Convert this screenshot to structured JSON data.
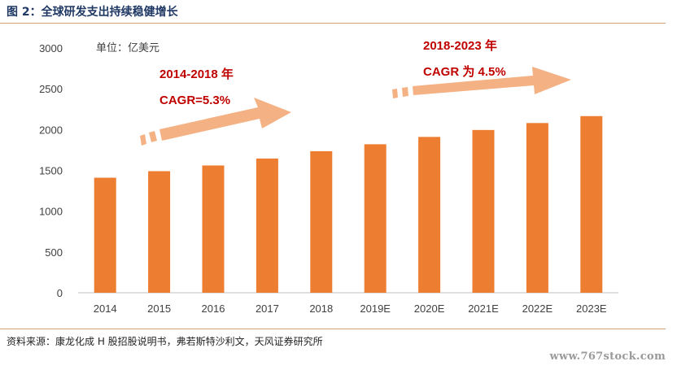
{
  "figure": {
    "title": "图 2：全球研发支出持续稳健增长",
    "source": "资料来源：康龙化成 H 股招股说明书，弗若斯特沙利文，天风证券研究所",
    "watermark": "www.767stock.com"
  },
  "colors": {
    "bar": "#ED7D31",
    "arrow": "#F4B183",
    "annotation": "#C00000",
    "axis_text": "#404040",
    "title": "#1F3864"
  },
  "chart_data": {
    "type": "bar",
    "unit_label": "单位：亿美元",
    "categories": [
      "2014",
      "2015",
      "2016",
      "2017",
      "2018",
      "2019E",
      "2020E",
      "2021E",
      "2022E",
      "2023E"
    ],
    "values": [
      1410,
      1490,
      1560,
      1645,
      1735,
      1820,
      1910,
      1995,
      2080,
      2165
    ],
    "ylim": [
      0,
      3000
    ],
    "yticks": [
      0,
      500,
      1000,
      1500,
      2000,
      2500,
      3000
    ],
    "grid": false,
    "legend": "none",
    "annotations": [
      {
        "period": "2014-2018 年",
        "text": "CAGR=5.3%"
      },
      {
        "period": "2018-2023 年",
        "text": "CAGR 为 4.5%"
      }
    ]
  }
}
